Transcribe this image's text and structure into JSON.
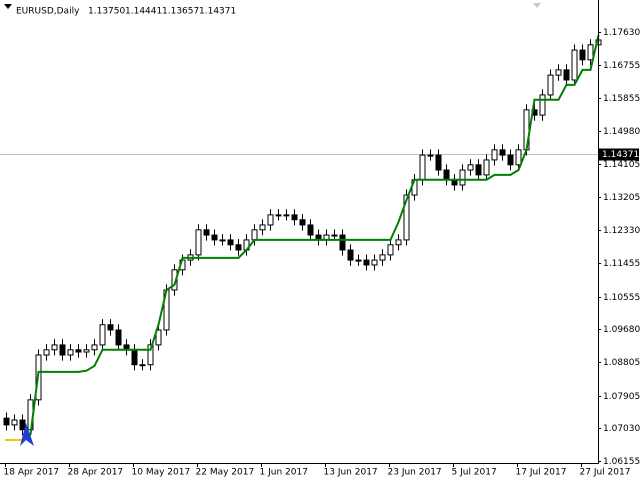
{
  "header": {
    "symbol": "EURUSD,Daily",
    "ohlc": [
      "1.13750",
      "1.14441",
      "1.13657",
      "1.14371"
    ]
  },
  "chart_data": {
    "type": "candlestick",
    "categories": [
      "18 Apr 2017",
      null,
      null,
      null,
      null,
      null,
      null,
      null,
      "28 Apr 2017",
      null,
      null,
      null,
      null,
      null,
      null,
      null,
      "10 May 2017",
      null,
      null,
      null,
      null,
      null,
      null,
      null,
      "22 May 2017",
      null,
      null,
      null,
      null,
      null,
      null,
      null,
      "1 Jun 2017",
      null,
      null,
      null,
      null,
      null,
      null,
      null,
      "13 Jun 2017",
      null,
      null,
      null,
      null,
      null,
      null,
      null,
      "23 Jun 2017",
      null,
      null,
      null,
      null,
      null,
      null,
      null,
      "5 Jul 2017",
      null,
      null,
      null,
      null,
      null,
      null,
      null,
      "17 Jul 2017",
      null,
      null,
      null,
      null,
      null,
      null,
      null,
      "27 Jul 2017",
      null,
      null
    ],
    "open": [
      1.073,
      1.0712,
      1.0725,
      1.0699,
      1.0779,
      1.0899,
      1.0913,
      1.0926,
      1.0899,
      1.0913,
      1.0907,
      1.0913,
      1.0926,
      1.098,
      1.0966,
      1.0926,
      1.0913,
      1.0873,
      1.0873,
      1.0926,
      1.0966,
      1.1073,
      1.1127,
      1.1153,
      1.1167,
      1.1234,
      1.122,
      1.1207,
      1.1207,
      1.1194,
      1.118,
      1.1207,
      1.1234,
      1.1247,
      1.1274,
      1.1274,
      1.1274,
      1.1261,
      1.1247,
      1.122,
      1.1207,
      1.122,
      1.122,
      1.118,
      1.1153,
      1.1153,
      1.114,
      1.1153,
      1.1167,
      1.1194,
      1.1207,
      1.1327,
      1.1368,
      1.1434,
      1.1434,
      1.1394,
      1.1368,
      1.1354,
      1.1394,
      1.1408,
      1.1381,
      1.1421,
      1.1448,
      1.1434,
      1.1408,
      1.1448,
      1.1555,
      1.1541,
      1.1595,
      1.1648,
      1.1662,
      1.1635,
      1.1715,
      1.1689,
      1.1729
    ],
    "high": [
      1.0745,
      1.074,
      1.074,
      1.0794,
      1.0914,
      1.0928,
      1.0941,
      1.0941,
      1.0928,
      1.0928,
      1.0928,
      1.0941,
      1.0995,
      1.0995,
      1.0981,
      1.0941,
      1.0928,
      1.0888,
      1.0941,
      1.0981,
      1.1088,
      1.1142,
      1.1168,
      1.1182,
      1.1249,
      1.1249,
      1.1235,
      1.1222,
      1.1222,
      1.1209,
      1.1222,
      1.1249,
      1.1262,
      1.1289,
      1.1289,
      1.1289,
      1.1289,
      1.1276,
      1.1262,
      1.1235,
      1.1235,
      1.1235,
      1.1235,
      1.1195,
      1.1168,
      1.1168,
      1.1168,
      1.1182,
      1.1209,
      1.1222,
      1.1342,
      1.1383,
      1.1449,
      1.1449,
      1.1449,
      1.1409,
      1.1383,
      1.1409,
      1.1423,
      1.1423,
      1.1436,
      1.1463,
      1.1463,
      1.1449,
      1.1463,
      1.157,
      1.157,
      1.161,
      1.1663,
      1.1677,
      1.1677,
      1.173,
      1.173,
      1.1744,
      1.1757
    ],
    "low": [
      1.0697,
      1.0697,
      1.0684,
      1.0684,
      1.0764,
      1.0884,
      1.0898,
      1.0884,
      1.0884,
      1.0892,
      1.0892,
      1.0898,
      1.0911,
      1.0951,
      1.0911,
      1.0898,
      1.0858,
      1.0858,
      1.0858,
      1.0911,
      1.0951,
      1.1058,
      1.1112,
      1.1138,
      1.1152,
      1.1205,
      1.1192,
      1.1192,
      1.1179,
      1.1165,
      1.1165,
      1.1192,
      1.1219,
      1.1232,
      1.1259,
      1.1259,
      1.1246,
      1.1232,
      1.1205,
      1.1192,
      1.1192,
      1.1205,
      1.1165,
      1.1138,
      1.1138,
      1.1125,
      1.1125,
      1.1138,
      1.1152,
      1.1179,
      1.1192,
      1.1312,
      1.1353,
      1.1419,
      1.1379,
      1.1353,
      1.1339,
      1.1339,
      1.1379,
      1.1366,
      1.1366,
      1.1406,
      1.1419,
      1.1393,
      1.1393,
      1.1433,
      1.1526,
      1.1526,
      1.158,
      1.1633,
      1.162,
      1.162,
      1.1674,
      1.1674,
      1.1714
    ],
    "close": [
      1.0712,
      1.0725,
      1.0699,
      1.0779,
      1.0899,
      1.0913,
      1.0926,
      1.0899,
      1.0913,
      1.0907,
      1.0913,
      1.0926,
      1.098,
      1.0966,
      1.0926,
      1.0913,
      1.0873,
      1.0873,
      1.0926,
      1.0966,
      1.1073,
      1.1127,
      1.1153,
      1.1167,
      1.1234,
      1.122,
      1.1207,
      1.1207,
      1.1194,
      1.118,
      1.1207,
      1.1234,
      1.1247,
      1.1274,
      1.1274,
      1.1274,
      1.1261,
      1.1247,
      1.122,
      1.1207,
      1.122,
      1.122,
      1.118,
      1.1153,
      1.1153,
      1.114,
      1.1153,
      1.1167,
      1.1194,
      1.1207,
      1.1327,
      1.1368,
      1.1434,
      1.1434,
      1.1394,
      1.1368,
      1.1354,
      1.1394,
      1.1408,
      1.1381,
      1.1421,
      1.1448,
      1.1434,
      1.1408,
      1.1448,
      1.1555,
      1.1541,
      1.1595,
      1.1648,
      1.1662,
      1.1635,
      1.1715,
      1.1689,
      1.1729,
      1.1742
    ],
    "series": [
      {
        "color": "#007f00",
        "values": [
          null,
          null,
          null,
          1.0686,
          1.0854,
          1.0854,
          1.0854,
          1.0854,
          1.0854,
          1.0854,
          1.0857,
          1.087,
          1.0913,
          1.0913,
          1.0913,
          1.0913,
          1.0913,
          1.0913,
          1.0913,
          1.098,
          1.1073,
          1.1087,
          1.1159,
          1.1159,
          1.1159,
          1.1159,
          1.1159,
          1.1159,
          1.1159,
          1.1159,
          1.118,
          1.1207,
          1.1207,
          1.1207,
          1.1207,
          1.1207,
          1.1207,
          1.1207,
          1.1207,
          1.1207,
          1.1207,
          1.1207,
          1.1207,
          1.1207,
          1.1207,
          1.1207,
          1.1207,
          1.1207,
          1.1207,
          1.1255,
          1.1314,
          1.1368,
          1.1368,
          1.1368,
          1.1368,
          1.1368,
          1.1368,
          1.1368,
          1.1368,
          1.1368,
          1.1368,
          1.1381,
          1.1381,
          1.1381,
          1.1394,
          1.1448,
          1.1582,
          1.1582,
          1.1582,
          1.1582,
          1.1622,
          1.1622,
          1.1662,
          1.1662,
          1.1755
        ]
      }
    ],
    "up_color": "#ffffff",
    "down_color": "#000000",
    "current_price": 1.14371,
    "ylim": [
      1.061,
      1.1849
    ],
    "yticks": [
      {
        "value": 1.1763,
        "label": "1.17630"
      },
      1.16755,
      1.15855,
      {
        "value": 1.1498,
        "label": "1.14980"
      },
      1.14105,
      1.13205,
      {
        "value": 1.1233,
        "label": "1.12330"
      },
      1.11455,
      1.10555,
      {
        "value": 1.0968,
        "label": "1.09680"
      },
      1.08805,
      1.07905,
      {
        "value": 1.0703,
        "label": "1.07030"
      },
      1.06155
    ]
  }
}
